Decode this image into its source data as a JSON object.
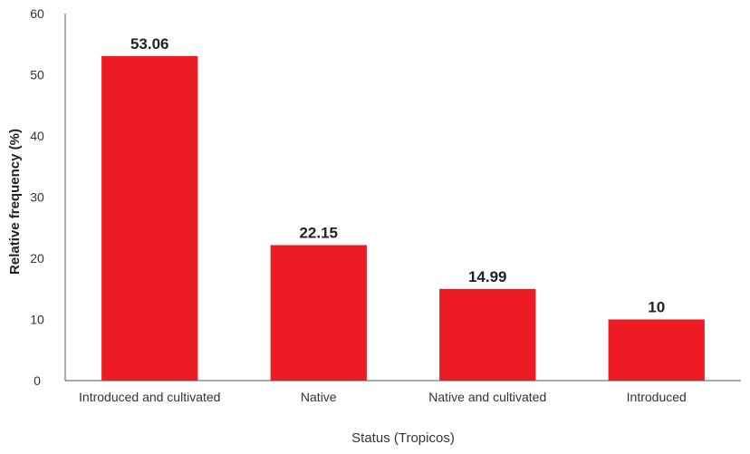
{
  "chart_data": {
    "type": "bar",
    "title": "",
    "xlabel": "Status (Tropicos)",
    "ylabel": "Relative frequency (%)",
    "categories": [
      "Introduced and cultivated",
      "Native",
      "Native and cultivated",
      "Introduced"
    ],
    "values": [
      53.06,
      22.15,
      14.99,
      10
    ],
    "value_labels": [
      "53.06",
      "22.15",
      "14.99",
      "10"
    ],
    "ylim": [
      0,
      60
    ],
    "yticks": [
      0,
      10,
      20,
      30,
      40,
      50,
      60
    ],
    "grid": false,
    "legend": "none",
    "bar_color": "#ed1c24"
  }
}
